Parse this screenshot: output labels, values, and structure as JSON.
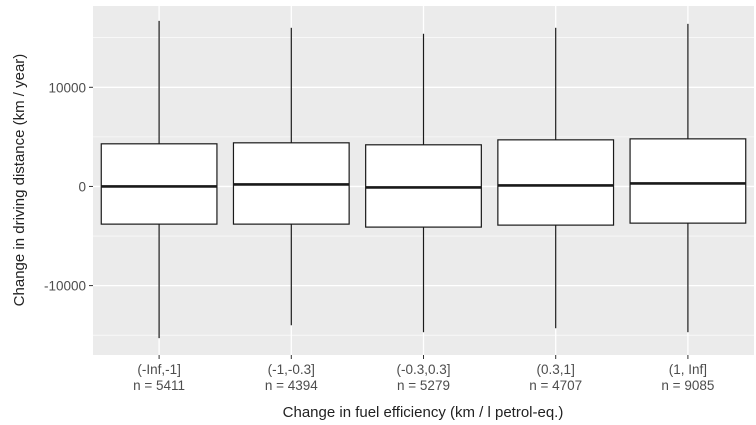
{
  "chart_data": {
    "type": "box",
    "xlabel": "Change in fuel efficiency (km / l petrol-eq.)",
    "ylabel": "Change in driving distance (km / year)",
    "ylim": [
      -17000,
      18200
    ],
    "yticks": [
      -10000,
      0,
      10000
    ],
    "ytick_labels": [
      "-10000",
      "0",
      "10000"
    ],
    "grid": true,
    "panel_background": "#ebebeb",
    "grid_color": "#ffffff",
    "box_fill": "#ffffff",
    "line_color": "#1a1a1a",
    "categories": [
      {
        "label": "(-Inf,-1]",
        "n": "n = 5411",
        "min": -15300,
        "q1": -3800,
        "median": 0,
        "q3": 4300,
        "max": 16700
      },
      {
        "label": "(-1,-0.3]",
        "n": "n = 4394",
        "min": -14000,
        "q1": -3800,
        "median": 200,
        "q3": 4400,
        "max": 16000
      },
      {
        "label": "(-0.3,0.3]",
        "n": "n = 5279",
        "min": -14700,
        "q1": -4100,
        "median": -100,
        "q3": 4200,
        "max": 15400
      },
      {
        "label": "(0.3,1]",
        "n": "n = 4707",
        "min": -14300,
        "q1": -3900,
        "median": 100,
        "q3": 4700,
        "max": 16000
      },
      {
        "label": "(1, Inf]",
        "n": "n = 9085",
        "min": -14700,
        "q1": -3700,
        "median": 300,
        "q3": 4800,
        "max": 16400
      }
    ]
  }
}
